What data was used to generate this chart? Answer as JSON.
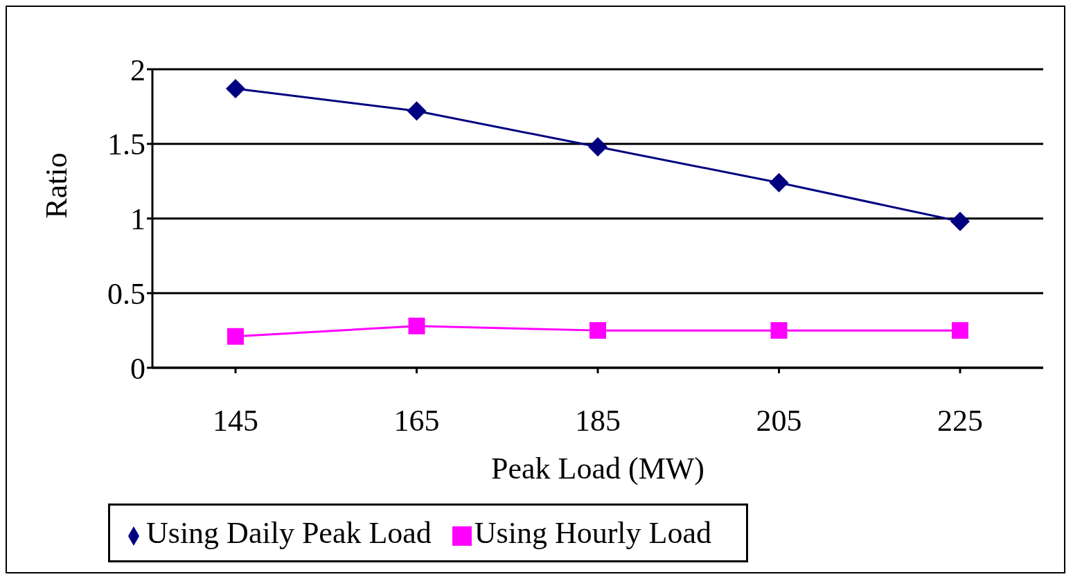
{
  "chart_data": {
    "type": "line",
    "xlabel": "Peak Load (MW)",
    "ylabel": "Ratio",
    "categories": [
      "145",
      "165",
      "185",
      "205",
      "225"
    ],
    "series": [
      {
        "name": "Using Daily Peak Load",
        "color": "#000080",
        "marker": "diamond",
        "values": [
          1.87,
          1.72,
          1.48,
          1.24,
          0.98
        ]
      },
      {
        "name": "Using Hourly Load",
        "color": "#ff00ff",
        "marker": "square",
        "values": [
          0.21,
          0.28,
          0.25,
          0.25,
          0.25
        ]
      }
    ],
    "ylim": [
      0,
      2
    ],
    "yticks": [
      0,
      0.5,
      1,
      1.5,
      2
    ],
    "grid": "y",
    "legend": "bottom",
    "line_style": "solid"
  }
}
